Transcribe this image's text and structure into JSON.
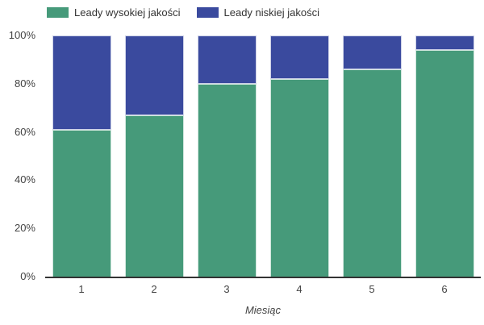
{
  "chart_data": {
    "type": "bar",
    "variant": "stacked-100-percent",
    "title": "",
    "xlabel": "Miesiąc",
    "ylabel": "",
    "categories": [
      "1",
      "2",
      "3",
      "4",
      "5",
      "6"
    ],
    "series": [
      {
        "name": "Leady wysokiej jakości",
        "color": "#469a7a",
        "values": [
          61,
          67,
          80,
          82,
          86,
          94
        ]
      },
      {
        "name": "Leady niskiej jakości",
        "color": "#3a4a9e",
        "values": [
          39,
          33,
          20,
          18,
          14,
          6
        ]
      }
    ],
    "ylim": [
      0,
      100
    ],
    "yticks": [
      "0%",
      "20%",
      "40%",
      "60%",
      "80%",
      "100%"
    ],
    "grid": false,
    "legend_position": "top",
    "colors": {
      "axis_line": "#333333",
      "tick_text": "#444444",
      "legend_text": "#333333",
      "background": "#ffffff"
    }
  }
}
